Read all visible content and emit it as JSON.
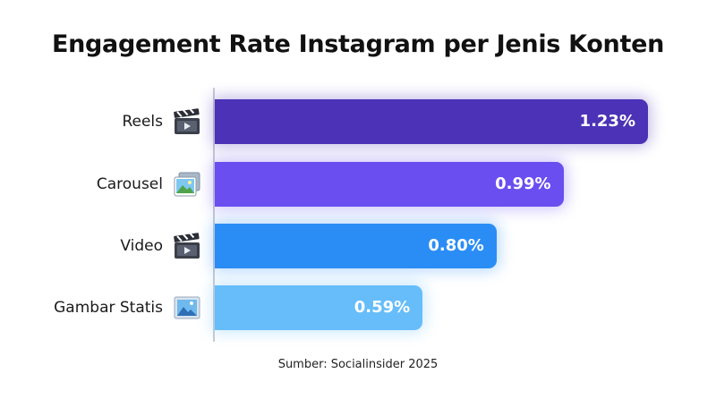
{
  "chart_data": {
    "type": "bar",
    "orientation": "horizontal",
    "title": "Engagement Rate Instagram per Jenis Konten",
    "categories": [
      "Reels",
      "Carousel",
      "Video",
      "Gambar Statis"
    ],
    "values": [
      1.23,
      0.99,
      0.8,
      0.59
    ],
    "value_labels": [
      "1.23%",
      "0.99%",
      "0.80%",
      "0.59%"
    ],
    "icons": [
      "clapperboard-icon",
      "photos-icon",
      "clapperboard-icon",
      "picture-icon"
    ],
    "colors": [
      "#4b32b6",
      "#6a4ef0",
      "#2a8df5",
      "#66bdfa"
    ],
    "xlim": [
      0,
      1.23
    ],
    "grid": false,
    "source": "Sumber: Socialinsider 2025"
  }
}
